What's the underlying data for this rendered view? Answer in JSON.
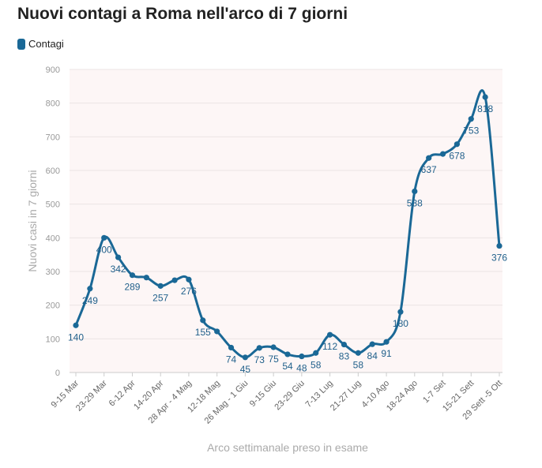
{
  "chart_data": {
    "type": "line",
    "title": "Nuovi contagi a Roma nell'arco di 7 giorni",
    "xlabel": "Arco settimanale preso in esame",
    "ylabel": "Nuovi casi in 7 giorni",
    "ylim": [
      0,
      900
    ],
    "yticks": [
      "0",
      "100",
      "200",
      "300",
      "400",
      "500",
      "600",
      "700",
      "800",
      "900"
    ],
    "grid": true,
    "legend_position": "top-left",
    "color": "#1a6896",
    "background": "#fdf6f6",
    "tick_labels": [
      "9-15 Mar",
      "23-29 Mar",
      "6-12 Apr",
      "14-20 Apr",
      "28 Apr - 4 Mag",
      "12-18 Mag",
      "26 Mag - 1 Giu",
      "9-15 Giu",
      "23-29 Giu",
      "7-13 Lug",
      "21-27 Lug",
      "4-10 Ago",
      "18-24 Ago",
      "1-7 Set",
      "15-21 Sett",
      "29 Sett -5 Ott"
    ],
    "series": [
      {
        "name": "Contagi",
        "values": [
          140,
          249,
          400,
          342,
          289,
          282,
          257,
          274,
          276,
          155,
          122,
          74,
          45,
          73,
          75,
          54,
          48,
          58,
          112,
          83,
          58,
          84,
          91,
          180,
          538,
          637,
          649,
          678,
          753,
          818,
          376
        ],
        "labels": [
          "140",
          "249",
          "400",
          "342",
          "289",
          "",
          "257",
          "",
          "276",
          "155",
          "",
          "74",
          "45",
          "73",
          "75",
          "54",
          "48",
          "58",
          "112",
          "83",
          "58",
          "84",
          "91",
          "180",
          "538",
          "637",
          "",
          "678",
          "753",
          "818",
          "376"
        ]
      }
    ]
  }
}
